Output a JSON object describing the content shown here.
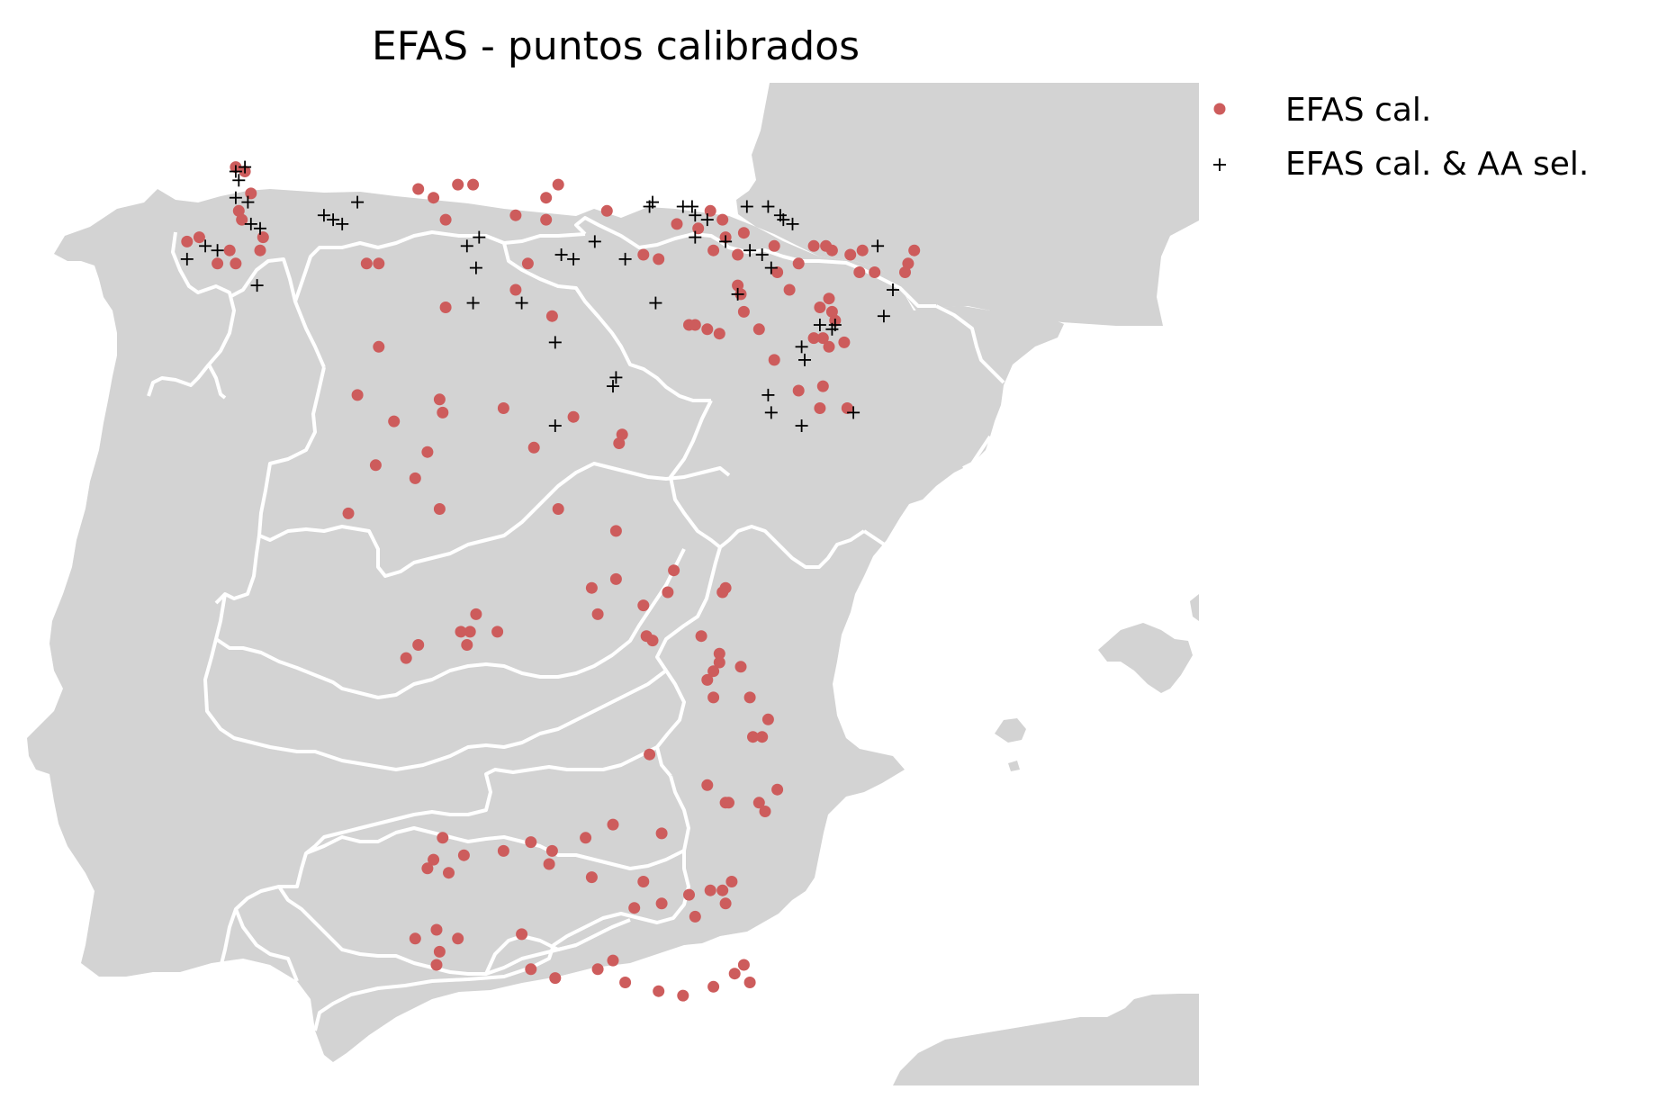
{
  "title": "EFAS - puntos calibrados",
  "colors": {
    "land": "#d3d3d3",
    "sea": "#ffffff",
    "boundary": "#ffffff",
    "efas_cal": "#cd5c5c",
    "efas_sel": "#000000"
  },
  "legend": {
    "placement": "upper-right outside",
    "items": [
      {
        "label": "EFAS cal.",
        "marker": "circle"
      },
      {
        "label": "EFAS cal. & AA sel.",
        "marker": "plus"
      }
    ]
  },
  "chart_data": {
    "type": "scatter",
    "region": "Iberian Peninsula (Spain river basins)",
    "series": [
      {
        "name": "EFAS cal.",
        "marker": "circle",
        "points": [
          [
            -8.3,
            43.4
          ],
          [
            -8.15,
            43.35
          ],
          [
            -8.05,
            43.1
          ],
          [
            -8.25,
            42.9
          ],
          [
            -8.2,
            42.8
          ],
          [
            -7.85,
            42.6
          ],
          [
            -7.9,
            42.45
          ],
          [
            -8.4,
            42.45
          ],
          [
            -8.9,
            42.6
          ],
          [
            -9.1,
            42.55
          ],
          [
            -8.6,
            42.3
          ],
          [
            -8.3,
            42.3
          ],
          [
            -6.15,
            42.3
          ],
          [
            -5.95,
            42.3
          ],
          [
            -5.3,
            43.15
          ],
          [
            -5.05,
            43.05
          ],
          [
            -4.65,
            43.2
          ],
          [
            -4.4,
            43.2
          ],
          [
            -4.85,
            42.8
          ],
          [
            -3.7,
            42.85
          ],
          [
            -3.2,
            43.05
          ],
          [
            -3.2,
            42.8
          ],
          [
            -3.0,
            43.2
          ],
          [
            -3.5,
            42.3
          ],
          [
            -3.7,
            42.0
          ],
          [
            -4.85,
            41.8
          ],
          [
            -3.1,
            41.7
          ],
          [
            -5.95,
            41.35
          ],
          [
            -6.3,
            40.8
          ],
          [
            -5.7,
            40.5
          ],
          [
            -4.95,
            40.75
          ],
          [
            -4.9,
            40.6
          ],
          [
            -3.9,
            40.65
          ],
          [
            -6.45,
            39.45
          ],
          [
            -4.95,
            39.5
          ],
          [
            -2.2,
            42.9
          ],
          [
            -1.6,
            42.4
          ],
          [
            -1.35,
            42.35
          ],
          [
            -1.05,
            42.75
          ],
          [
            -0.5,
            42.9
          ],
          [
            -0.3,
            42.8
          ],
          [
            -0.7,
            42.7
          ],
          [
            -0.25,
            42.6
          ],
          [
            0.05,
            42.65
          ],
          [
            -0.45,
            42.45
          ],
          [
            -0.05,
            42.4
          ],
          [
            0.55,
            42.5
          ],
          [
            0.6,
            42.2
          ],
          [
            1.2,
            42.5
          ],
          [
            1.4,
            42.5
          ],
          [
            1.5,
            42.45
          ],
          [
            0.95,
            42.3
          ],
          [
            0.8,
            42.0
          ],
          [
            1.45,
            41.9
          ],
          [
            1.8,
            42.4
          ],
          [
            2.0,
            42.45
          ],
          [
            1.95,
            42.2
          ],
          [
            2.2,
            42.2
          ],
          [
            2.85,
            42.45
          ],
          [
            2.75,
            42.3
          ],
          [
            2.7,
            42.2
          ],
          [
            0.05,
            41.75
          ],
          [
            -0.75,
            41.6
          ],
          [
            -0.55,
            41.55
          ],
          [
            -0.85,
            41.6
          ],
          [
            -0.35,
            41.5
          ],
          [
            0.3,
            41.55
          ],
          [
            -0.05,
            42.05
          ],
          [
            0.0,
            41.95
          ],
          [
            1.3,
            41.8
          ],
          [
            1.5,
            41.75
          ],
          [
            1.55,
            41.65
          ],
          [
            1.35,
            41.45
          ],
          [
            1.2,
            41.45
          ],
          [
            1.45,
            41.35
          ],
          [
            1.7,
            41.4
          ],
          [
            0.55,
            41.2
          ],
          [
            0.95,
            40.85
          ],
          [
            1.35,
            40.9
          ],
          [
            1.3,
            40.65
          ],
          [
            1.75,
            40.65
          ],
          [
            -2.75,
            40.55
          ],
          [
            -1.95,
            40.35
          ],
          [
            -2.0,
            40.25
          ],
          [
            -3.4,
            40.2
          ],
          [
            -5.15,
            40.15
          ],
          [
            -6.0,
            40.0
          ],
          [
            -5.35,
            39.85
          ],
          [
            -3.0,
            39.5
          ],
          [
            -2.05,
            39.25
          ],
          [
            -2.05,
            38.7
          ],
          [
            -2.45,
            38.6
          ],
          [
            -2.35,
            38.3
          ],
          [
            -4.35,
            38.3
          ],
          [
            -4.45,
            38.1
          ],
          [
            -4.0,
            38.1
          ],
          [
            -4.5,
            37.95
          ],
          [
            -4.6,
            38.1
          ],
          [
            -5.3,
            37.95
          ],
          [
            -5.5,
            37.8
          ],
          [
            -1.1,
            38.8
          ],
          [
            -0.25,
            38.6
          ],
          [
            -0.3,
            38.55
          ],
          [
            -1.2,
            38.55
          ],
          [
            -1.6,
            38.4
          ],
          [
            -1.55,
            38.05
          ],
          [
            -1.45,
            38.0
          ],
          [
            -0.65,
            38.05
          ],
          [
            -0.35,
            37.85
          ],
          [
            -0.35,
            37.75
          ],
          [
            -0.45,
            37.65
          ],
          [
            -0.55,
            37.55
          ],
          [
            0.0,
            37.7
          ],
          [
            -0.45,
            37.35
          ],
          [
            0.15,
            37.35
          ],
          [
            0.2,
            36.9
          ],
          [
            0.45,
            37.1
          ],
          [
            0.35,
            36.9
          ],
          [
            -1.5,
            36.7
          ],
          [
            -0.55,
            36.35
          ],
          [
            -0.2,
            36.15
          ],
          [
            -0.25,
            36.15
          ],
          [
            0.3,
            36.15
          ],
          [
            0.6,
            36.3
          ],
          [
            0.4,
            36.05
          ],
          [
            -1.3,
            35.8
          ],
          [
            -2.1,
            35.9
          ],
          [
            -2.55,
            35.75
          ],
          [
            -3.1,
            35.6
          ],
          [
            -3.45,
            35.7
          ],
          [
            -3.9,
            35.6
          ],
          [
            -4.9,
            35.75
          ],
          [
            -5.05,
            35.5
          ],
          [
            -4.55,
            35.55
          ],
          [
            -4.8,
            35.35
          ],
          [
            -5.15,
            35.4
          ],
          [
            -3.15,
            35.45
          ],
          [
            -2.45,
            35.3
          ],
          [
            -1.6,
            35.25
          ],
          [
            -1.3,
            35.0
          ],
          [
            -0.75,
            34.85
          ],
          [
            -0.25,
            35.0
          ],
          [
            -0.85,
            35.1
          ],
          [
            -0.5,
            35.15
          ],
          [
            -0.3,
            35.15
          ],
          [
            -0.15,
            35.25
          ],
          [
            -1.75,
            34.95
          ],
          [
            -3.6,
            34.65
          ],
          [
            -4.65,
            34.6
          ],
          [
            -5.0,
            34.7
          ],
          [
            -5.35,
            34.6
          ],
          [
            -4.95,
            34.45
          ],
          [
            -5.0,
            34.3
          ],
          [
            -3.45,
            34.25
          ],
          [
            -3.05,
            34.15
          ],
          [
            -2.35,
            34.25
          ],
          [
            -2.1,
            34.35
          ],
          [
            -1.9,
            34.1
          ],
          [
            -1.35,
            34.0
          ],
          [
            -0.95,
            33.95
          ],
          [
            -0.45,
            34.05
          ],
          [
            -0.1,
            34.2
          ],
          [
            0.05,
            34.3
          ],
          [
            0.15,
            34.1
          ]
        ]
      },
      {
        "name": "EFAS cal. & AA sel.",
        "marker": "plus",
        "points": [
          [
            -8.3,
            43.35
          ],
          [
            -8.15,
            43.4
          ],
          [
            -8.25,
            43.25
          ],
          [
            -8.3,
            43.05
          ],
          [
            -8.1,
            43.0
          ],
          [
            -8.05,
            42.75
          ],
          [
            -7.9,
            42.7
          ],
          [
            -8.8,
            42.5
          ],
          [
            -8.6,
            42.45
          ],
          [
            -9.1,
            42.35
          ],
          [
            -7.95,
            42.05
          ],
          [
            -6.85,
            42.85
          ],
          [
            -6.7,
            42.8
          ],
          [
            -6.55,
            42.75
          ],
          [
            -6.3,
            43.0
          ],
          [
            -4.5,
            42.5
          ],
          [
            -4.3,
            42.6
          ],
          [
            -4.35,
            42.25
          ],
          [
            -4.4,
            41.85
          ],
          [
            -3.6,
            41.85
          ],
          [
            -2.95,
            42.4
          ],
          [
            -2.75,
            42.35
          ],
          [
            -2.4,
            42.55
          ],
          [
            -1.9,
            42.35
          ],
          [
            -1.4,
            41.85
          ],
          [
            -3.05,
            41.4
          ],
          [
            -2.05,
            41.0
          ],
          [
            -2.1,
            40.9
          ],
          [
            -3.05,
            40.45
          ],
          [
            -1.5,
            42.95
          ],
          [
            -1.45,
            43.0
          ],
          [
            -0.95,
            42.95
          ],
          [
            -0.8,
            42.95
          ],
          [
            -0.75,
            42.85
          ],
          [
            -0.55,
            42.8
          ],
          [
            0.1,
            42.95
          ],
          [
            0.45,
            42.95
          ],
          [
            0.65,
            42.85
          ],
          [
            0.7,
            42.8
          ],
          [
            0.85,
            42.75
          ],
          [
            -0.75,
            42.6
          ],
          [
            -0.25,
            42.55
          ],
          [
            0.15,
            42.45
          ],
          [
            0.35,
            42.4
          ],
          [
            0.5,
            42.25
          ],
          [
            2.5,
            42.0
          ],
          [
            2.35,
            41.7
          ],
          [
            1.3,
            41.6
          ],
          [
            1.0,
            41.35
          ],
          [
            1.05,
            41.2
          ],
          [
            0.45,
            40.8
          ],
          [
            0.5,
            40.6
          ],
          [
            2.25,
            42.5
          ],
          [
            -0.05,
            41.95
          ],
          [
            1.55,
            41.6
          ],
          [
            1.5,
            41.55
          ],
          [
            1.0,
            40.45
          ],
          [
            1.85,
            40.6
          ]
        ]
      }
    ]
  }
}
